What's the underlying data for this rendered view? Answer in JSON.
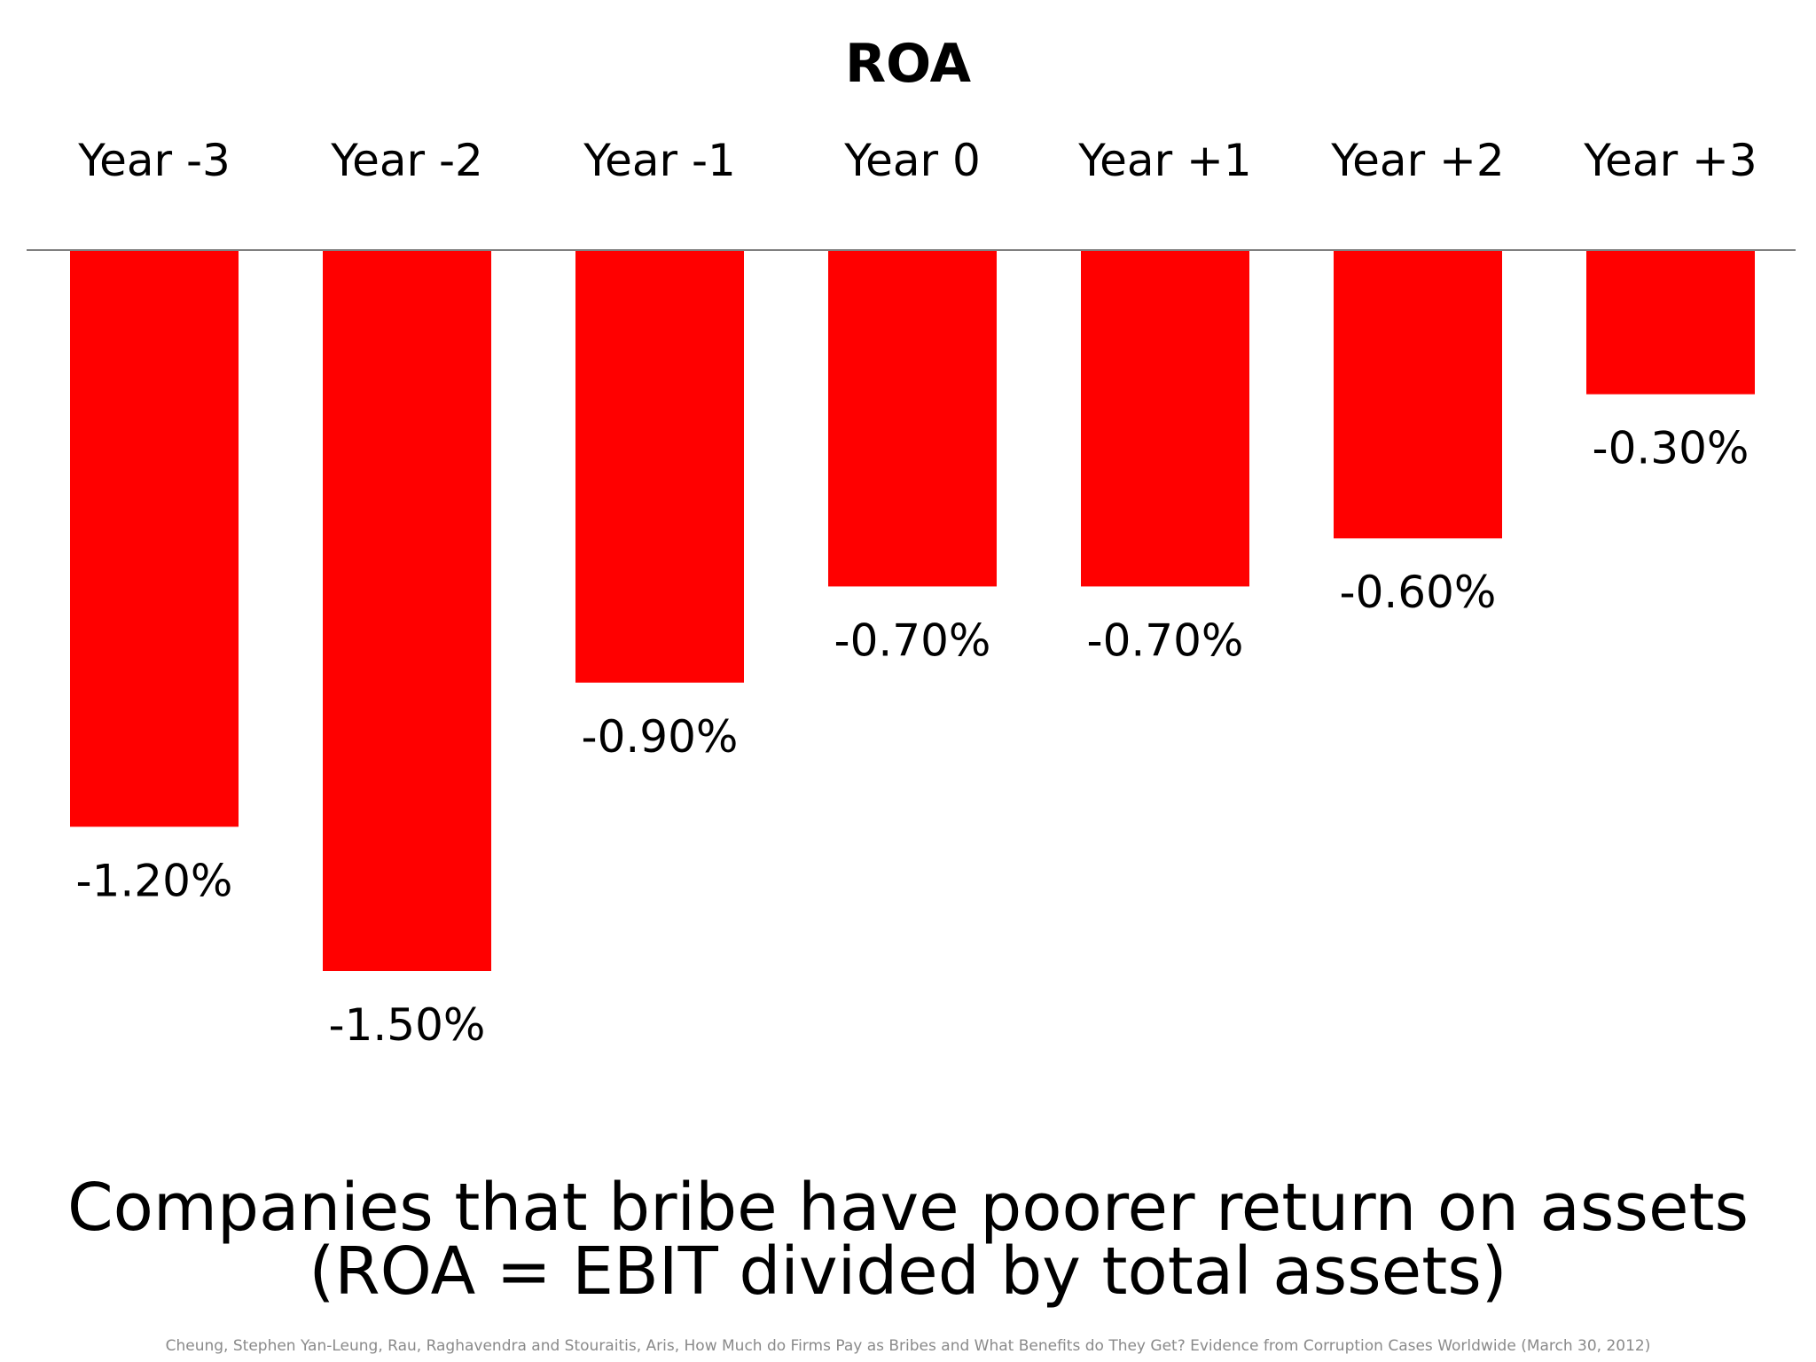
{
  "chart_data": {
    "type": "bar",
    "title": "ROA",
    "categories": [
      "Year -3",
      "Year -2",
      "Year -1",
      "Year 0",
      "Year +1",
      "Year +2",
      "Year +3"
    ],
    "values": [
      -1.2,
      -1.5,
      -0.9,
      -0.7,
      -0.7,
      -0.6,
      -0.3
    ],
    "data_labels": [
      "-1.20%",
      "-1.50%",
      "-0.90%",
      "-0.70%",
      "-0.70%",
      "-0.60%",
      "-0.30%"
    ],
    "bar_color": "#ff0000",
    "axis_line_color": "#808080",
    "category_labels_position": "top",
    "grid": false,
    "legend": "none"
  },
  "caption": {
    "line1": "Companies that bribe have poorer return on assets",
    "line2": "(ROA = EBIT divided by total assets)"
  },
  "citation": "Cheung, Stephen Yan-Leung, Rau, Raghavendra and Stouraitis, Aris, How Much do Firms Pay as Bribes and What Benefits do They Get? Evidence from Corruption Cases Worldwide (March 30, 2012)"
}
